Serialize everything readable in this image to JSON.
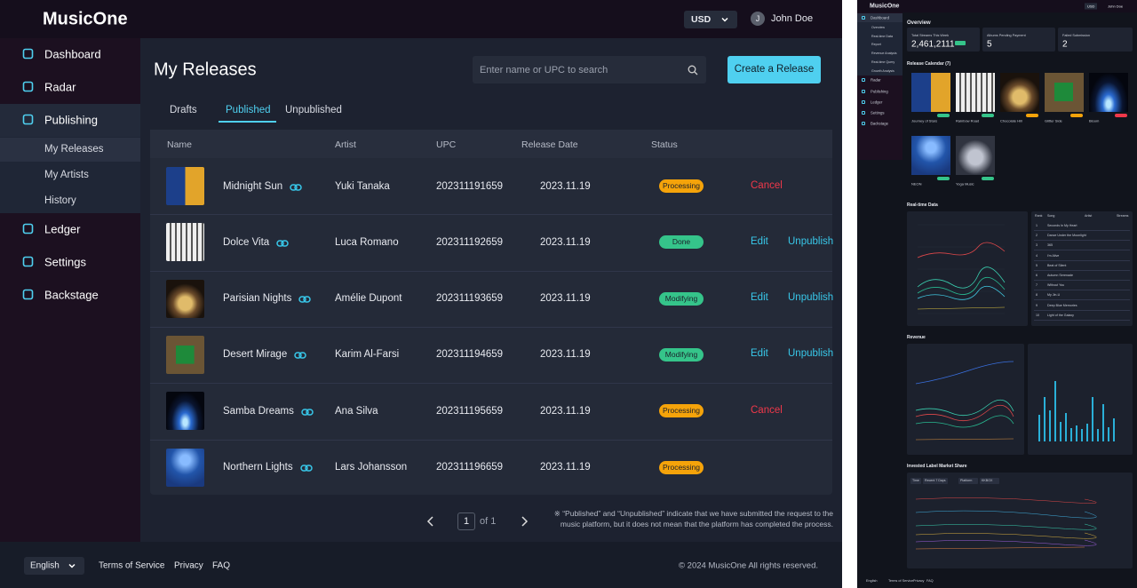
{
  "header": {
    "logo": "MusicOne",
    "currency": "USD",
    "avatar": "J",
    "user": "John Doe"
  },
  "sidebar": {
    "items": [
      "Dashboard",
      "Radar",
      "Publishing",
      "Ledger",
      "Settings",
      "Backstage"
    ],
    "sub_items": [
      "My Releases",
      "My Artists",
      "History"
    ]
  },
  "page": {
    "title": "My Releases",
    "search_placeholder": "Enter name or UPC to search",
    "create_button": "Create a Release",
    "tabs": [
      "Drafts",
      "Published",
      "Unpublished"
    ]
  },
  "table": {
    "columns": [
      "Name",
      "Artist",
      "UPC",
      "Release Date",
      "Status"
    ],
    "rows": [
      {
        "name": "Midnight Sun",
        "artist": "Yuki Tanaka",
        "upc": "202311191659",
        "date": "2023.11.19",
        "status": "Processing",
        "status_color": "#f5a30a",
        "actions": [
          {
            "label": "Cancel",
            "color": "#f0384a"
          }
        ]
      },
      {
        "name": "Dolce Vita",
        "artist": "Luca Romano",
        "upc": "202311192659",
        "date": "2023.11.19",
        "status": "Done",
        "status_color": "#35c48a",
        "actions": [
          {
            "label": "Edit",
            "color": "#38c8ea"
          },
          {
            "label": "Unpublish",
            "color": "#38c8ea"
          }
        ]
      },
      {
        "name": "Parisian Nights",
        "artist": "Amélie Dupont",
        "upc": "202311193659",
        "date": "2023.11.19",
        "status": "Modifying",
        "status_color": "#35c48a",
        "actions": [
          {
            "label": "Edit",
            "color": "#38c8ea"
          },
          {
            "label": "Unpublish",
            "color": "#38c8ea"
          }
        ]
      },
      {
        "name": "Desert Mirage",
        "artist": "Karim Al-Farsi",
        "upc": "202311194659",
        "date": "2023.11.19",
        "status": "Modifying",
        "status_color": "#35c48a",
        "actions": [
          {
            "label": "Edit",
            "color": "#38c8ea"
          },
          {
            "label": "Unpublish",
            "color": "#38c8ea"
          }
        ]
      },
      {
        "name": "Samba Dreams",
        "artist": "Ana Silva",
        "upc": "202311195659",
        "date": "2023.11.19",
        "status": "Processing",
        "status_color": "#f5a30a",
        "actions": [
          {
            "label": "Cancel",
            "color": "#f0384a"
          }
        ]
      },
      {
        "name": "Northern Lights",
        "artist": "Lars Johansson",
        "upc": "202311196659",
        "date": "2023.11.19",
        "status": "Processing",
        "status_color": "#f5a30a",
        "actions": []
      }
    ]
  },
  "pagination": {
    "current": 1,
    "total": "of 1"
  },
  "note": "※ “Published” and “Unpublished” indicate that we have submitted the request to the music platform, but it does not mean that the platform has completed the process.",
  "footer": {
    "language": "English",
    "links": [
      "Terms of Service",
      "Privacy",
      "FAQ"
    ],
    "copyright": "© 2024 MusicOne All rights reserved."
  },
  "preview": {
    "logo": "MusicOne",
    "currency": "USD",
    "user": "John Doe",
    "nav": [
      "Dashboard",
      "Overview",
      "Real-time Data",
      "Report",
      "Revenue Analysis",
      "Real-time Query",
      "Growth Analysis",
      "Radar",
      "Publishing",
      "Ledger",
      "Settings",
      "Backstage"
    ],
    "overview_title": "Overview",
    "cards": [
      {
        "label": "Total Streams This Week",
        "value": "2,461,2111"
      },
      {
        "label": "Albums Pending Payment",
        "value": 5
      },
      {
        "label": "Failed Submission",
        "value": 2
      }
    ],
    "calendar_title": "Release Calendar (7)",
    "calendar": [
      "Journey of Stars",
      "Rainbow Road",
      "Chocolate Hill",
      "Glitter Side",
      "Bloom",
      "NEON",
      "Yoga Music"
    ],
    "realtime_title": "Real-time Data",
    "ranking_columns": [
      "Rank",
      "Song",
      "Artist",
      "Streams"
    ],
    "ranking": [
      [
        1,
        "Seconds In My Heart"
      ],
      [
        2,
        "Dance Under the Moonlight"
      ],
      [
        3,
        "365"
      ],
      [
        4,
        "I'm Alive"
      ],
      [
        5,
        "Beat of Silent"
      ],
      [
        6,
        "Autumn Serenade"
      ],
      [
        7,
        "Without You"
      ],
      [
        8,
        "My Jin-U"
      ],
      [
        9,
        "Deep Blue Memories"
      ],
      [
        10,
        "Light of the Galaxy"
      ]
    ],
    "revenue_title": "Revenue",
    "market_title": "Invested Label Market Share",
    "filters": [
      "Time",
      "Recent 7 Days",
      "Platform",
      "KKBOX"
    ],
    "footer": [
      "English",
      "Terms of Service",
      "Privacy",
      "FAQ"
    ]
  }
}
